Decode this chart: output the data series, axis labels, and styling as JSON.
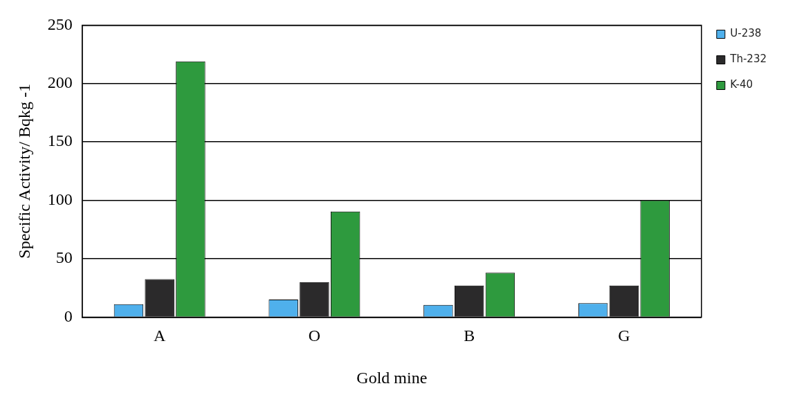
{
  "chart_data": {
    "type": "bar",
    "xlabel": "Gold mine",
    "ylabel": "Specific Activity/ Bqkg -1",
    "categories": [
      "A",
      "O",
      "B",
      "G"
    ],
    "series": [
      {
        "name": "U-238",
        "color": "#4fb0ec",
        "values": [
          11,
          15,
          10.5,
          12
        ]
      },
      {
        "name": "Th-232",
        "color": "#2b2a2b",
        "values": [
          32.5,
          30,
          27,
          27
        ]
      },
      {
        "name": "K-40",
        "color": "#2e9a3e",
        "values": [
          219,
          90.5,
          38,
          100
        ]
      }
    ],
    "ylim": [
      0,
      250
    ],
    "yticks": [
      0,
      50,
      100,
      150,
      200,
      250
    ],
    "grid": "y",
    "legend": "top right"
  }
}
